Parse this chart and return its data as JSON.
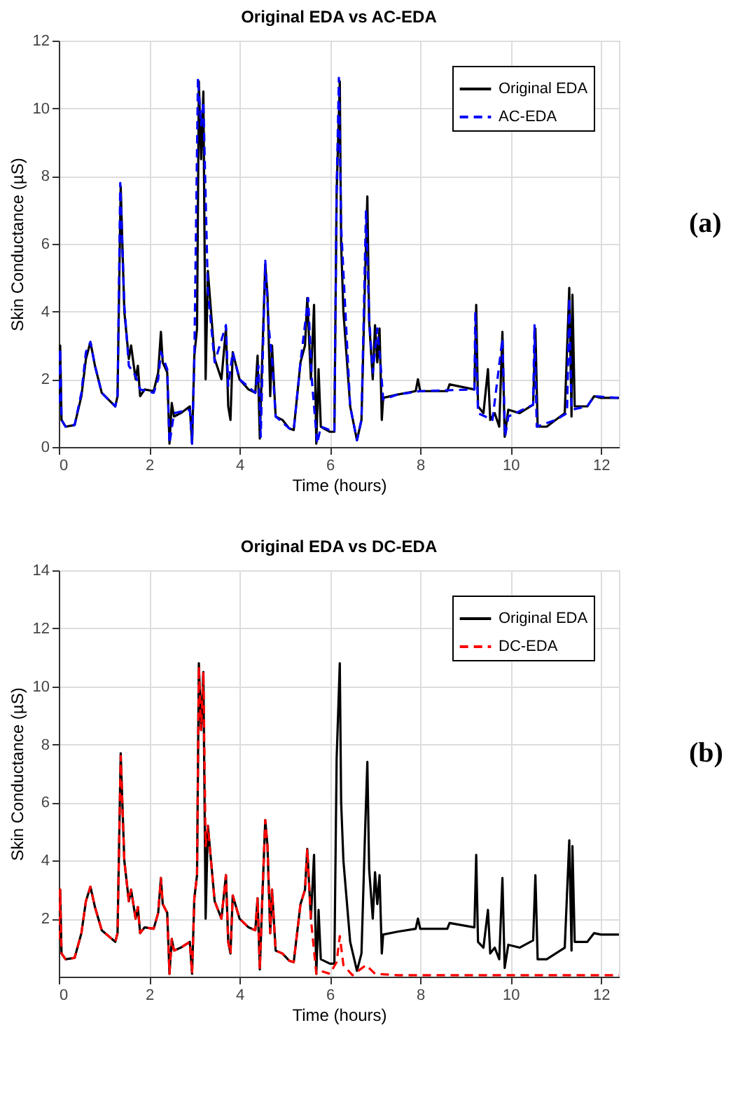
{
  "chart_data": [
    {
      "type": "line",
      "title": "Original EDA vs AC-EDA",
      "xlabel": "Time (hours)",
      "ylabel": "Skin Conductance (µS)",
      "xlim": [
        0,
        12.4
      ],
      "xticks": [
        0,
        2,
        4,
        6,
        8,
        10,
        12
      ],
      "ylim": [
        0,
        12
      ],
      "yticks": [
        0,
        2,
        4,
        6,
        8,
        10,
        12
      ],
      "grid": true,
      "legend": "top right",
      "annotations": [
        "(a)"
      ],
      "series": [
        {
          "name": "Original EDA",
          "color": "#000000",
          "line_style": "solid",
          "x": [
            0,
            0.03,
            0.06,
            0.15,
            0.35,
            0.5,
            0.6,
            0.7,
            0.8,
            0.95,
            1.1,
            1.25,
            1.3,
            1.37,
            1.45,
            1.55,
            1.6,
            1.7,
            1.75,
            1.8,
            1.9,
            2.1,
            2.2,
            2.26,
            2.3,
            2.4,
            2.45,
            2.5,
            2.55,
            2.7,
            2.9,
            2.95,
            3.0,
            3.06,
            3.1,
            3.15,
            3.2,
            3.25,
            3.3,
            3.45,
            3.6,
            3.7,
            3.75,
            3.8,
            3.85,
            4.0,
            4.2,
            4.35,
            4.4,
            4.45,
            4.5,
            4.57,
            4.62,
            4.68,
            4.72,
            4.8,
            4.95,
            5.1,
            5.2,
            5.35,
            5.45,
            5.5,
            5.58,
            5.65,
            5.7,
            5.75,
            5.8,
            6.0,
            6.1,
            6.15,
            6.22,
            6.25,
            6.3,
            6.45,
            6.6,
            6.7,
            6.78,
            6.83,
            6.87,
            6.95,
            7.0,
            7.05,
            7.1,
            7.15,
            7.18,
            7.5,
            7.9,
            7.95,
            8.0,
            8.6,
            8.65,
            9.2,
            9.24,
            9.28,
            9.4,
            9.5,
            9.55,
            9.65,
            9.75,
            9.82,
            9.87,
            9.95,
            10.2,
            10.5,
            10.55,
            10.6,
            10.8,
            11.0,
            11.2,
            11.3,
            11.35,
            11.37,
            11.42,
            11.7,
            11.85,
            12.0,
            12.4
          ],
          "values": [
            1.3,
            3.0,
            0.8,
            0.6,
            0.65,
            1.5,
            2.6,
            3.1,
            2.4,
            1.6,
            1.4,
            1.2,
            1.5,
            7.7,
            4.0,
            2.6,
            3.0,
            2.0,
            2.4,
            1.5,
            1.7,
            1.65,
            2.2,
            3.4,
            2.5,
            2.2,
            0.1,
            1.3,
            0.9,
            1.0,
            1.2,
            0.1,
            2.7,
            3.5,
            10.8,
            8.5,
            10.5,
            2.0,
            5.2,
            2.6,
            2.0,
            3.5,
            1.2,
            0.8,
            2.8,
            2.0,
            1.7,
            1.6,
            2.7,
            0.25,
            2.5,
            5.4,
            4.5,
            1.5,
            3.0,
            0.9,
            0.8,
            0.55,
            0.5,
            2.5,
            3.0,
            4.4,
            2.0,
            4.2,
            0.1,
            2.3,
            0.6,
            0.45,
            0.45,
            7.5,
            10.8,
            6.0,
            4.0,
            1.2,
            0.2,
            0.8,
            5.0,
            7.4,
            3.7,
            2.0,
            3.6,
            2.5,
            3.5,
            0.8,
            1.45,
            1.55,
            1.65,
            2.0,
            1.65,
            1.65,
            1.85,
            1.7,
            4.2,
            1.2,
            1.0,
            2.3,
            0.8,
            1.0,
            0.6,
            3.4,
            0.3,
            1.1,
            1.0,
            1.25,
            3.5,
            0.6,
            0.6,
            0.8,
            1.0,
            4.7,
            0.9,
            4.5,
            1.2,
            1.2,
            1.5,
            1.45,
            1.45
          ]
        },
        {
          "name": "AC-EDA",
          "color": "#0000ff",
          "line_style": "dashed",
          "x": [
            0,
            0.03,
            0.06,
            0.15,
            0.35,
            0.5,
            0.6,
            0.7,
            0.8,
            0.95,
            1.1,
            1.25,
            1.3,
            1.36,
            1.45,
            1.55,
            1.7,
            1.8,
            2.1,
            2.2,
            2.26,
            2.4,
            2.45,
            2.55,
            2.9,
            2.95,
            3.0,
            3.08,
            3.15,
            3.2,
            3.3,
            3.45,
            3.7,
            3.75,
            3.85,
            4.0,
            4.35,
            4.42,
            4.47,
            4.57,
            4.65,
            4.72,
            4.8,
            5.1,
            5.2,
            5.35,
            5.52,
            5.6,
            5.72,
            5.8,
            6.1,
            6.15,
            6.2,
            6.25,
            6.45,
            6.6,
            6.7,
            6.8,
            6.87,
            6.95,
            7.05,
            7.12,
            7.18,
            7.5,
            8.0,
            9.2,
            9.22,
            9.28,
            9.6,
            9.82,
            9.88,
            9.95,
            10.5,
            10.53,
            10.58,
            11.0,
            11.25,
            11.3,
            11.35,
            11.7,
            11.85,
            12.4
          ],
          "values": [
            1.3,
            2.9,
            0.8,
            0.6,
            0.65,
            1.6,
            2.8,
            3.1,
            2.4,
            1.6,
            1.4,
            1.2,
            1.5,
            7.8,
            4.2,
            2.4,
            2.1,
            1.7,
            1.6,
            2.0,
            2.8,
            2.3,
            0.1,
            1.0,
            1.1,
            0.1,
            2.6,
            10.9,
            9.5,
            10.2,
            4.6,
            2.5,
            3.6,
            1.8,
            2.8,
            2.0,
            1.6,
            2.4,
            0.3,
            5.5,
            3.5,
            2.6,
            0.9,
            0.55,
            0.5,
            2.5,
            4.4,
            2.0,
            0.1,
            0.6,
            0.45,
            7.6,
            10.9,
            6.5,
            1.2,
            0.2,
            0.8,
            7.0,
            3.8,
            2.2,
            3.5,
            2.5,
            1.4,
            1.55,
            1.65,
            1.7,
            4.0,
            1.0,
            0.8,
            3.2,
            0.3,
            0.9,
            1.25,
            3.6,
            0.6,
            0.8,
            1.0,
            4.4,
            1.1,
            1.2,
            1.5,
            1.45
          ]
        }
      ]
    },
    {
      "type": "line",
      "title": "Original EDA vs DC-EDA",
      "xlabel": "Time (hours)",
      "ylabel": "Skin Conductance (µS)",
      "xlim": [
        0,
        12.4
      ],
      "xticks": [
        0,
        2,
        4,
        6,
        8,
        10,
        12
      ],
      "ylim": [
        0,
        14
      ],
      "yticks": [
        2,
        4,
        6,
        8,
        10,
        12,
        14
      ],
      "grid": true,
      "legend": "top right",
      "annotations": [
        "(b)"
      ],
      "series": [
        {
          "name": "Original EDA",
          "color": "#000000",
          "line_style": "solid",
          "x": [
            0,
            0.03,
            0.06,
            0.15,
            0.35,
            0.5,
            0.6,
            0.7,
            0.8,
            0.95,
            1.1,
            1.25,
            1.3,
            1.37,
            1.45,
            1.55,
            1.6,
            1.7,
            1.75,
            1.8,
            1.9,
            2.1,
            2.2,
            2.26,
            2.3,
            2.4,
            2.45,
            2.5,
            2.55,
            2.7,
            2.9,
            2.95,
            3.0,
            3.06,
            3.1,
            3.15,
            3.2,
            3.25,
            3.3,
            3.45,
            3.6,
            3.7,
            3.75,
            3.8,
            3.85,
            4.0,
            4.2,
            4.35,
            4.4,
            4.45,
            4.5,
            4.57,
            4.62,
            4.68,
            4.72,
            4.8,
            4.95,
            5.1,
            5.2,
            5.35,
            5.45,
            5.5,
            5.58,
            5.65,
            5.7,
            5.75,
            5.8,
            6.0,
            6.1,
            6.15,
            6.22,
            6.25,
            6.3,
            6.45,
            6.6,
            6.7,
            6.78,
            6.83,
            6.87,
            6.95,
            7.0,
            7.05,
            7.1,
            7.15,
            7.18,
            7.5,
            7.9,
            7.95,
            8.0,
            8.6,
            8.65,
            9.2,
            9.24,
            9.28,
            9.4,
            9.5,
            9.55,
            9.65,
            9.75,
            9.82,
            9.87,
            9.95,
            10.2,
            10.5,
            10.55,
            10.6,
            10.8,
            11.0,
            11.2,
            11.3,
            11.35,
            11.37,
            11.42,
            11.7,
            11.85,
            12.0,
            12.4
          ],
          "values": [
            1.3,
            3.0,
            0.8,
            0.6,
            0.65,
            1.5,
            2.6,
            3.1,
            2.4,
            1.6,
            1.4,
            1.2,
            1.5,
            7.7,
            4.0,
            2.6,
            3.0,
            2.0,
            2.4,
            1.5,
            1.7,
            1.65,
            2.2,
            3.4,
            2.5,
            2.2,
            0.1,
            1.3,
            0.9,
            1.0,
            1.2,
            0.1,
            2.7,
            3.5,
            10.8,
            8.5,
            10.5,
            2.0,
            5.2,
            2.6,
            2.0,
            3.5,
            1.2,
            0.8,
            2.8,
            2.0,
            1.7,
            1.6,
            2.7,
            0.25,
            2.5,
            5.4,
            4.5,
            1.5,
            3.0,
            0.9,
            0.8,
            0.55,
            0.5,
            2.5,
            3.0,
            4.4,
            2.0,
            4.2,
            0.1,
            2.3,
            0.6,
            0.45,
            0.45,
            7.5,
            10.8,
            6.0,
            4.0,
            1.2,
            0.2,
            0.8,
            5.0,
            7.4,
            3.7,
            2.0,
            3.6,
            2.5,
            3.5,
            0.8,
            1.45,
            1.55,
            1.65,
            2.0,
            1.65,
            1.65,
            1.85,
            1.7,
            4.2,
            1.2,
            1.0,
            2.3,
            0.8,
            1.0,
            0.6,
            3.4,
            0.3,
            1.1,
            1.0,
            1.25,
            3.5,
            0.6,
            0.6,
            0.8,
            1.0,
            4.7,
            0.9,
            4.5,
            1.2,
            1.2,
            1.5,
            1.45,
            1.45
          ]
        },
        {
          "name": "DC-EDA",
          "color": "#ff0000",
          "line_style": "dashed",
          "x": [
            0,
            0.03,
            0.06,
            0.15,
            0.35,
            0.5,
            0.6,
            0.7,
            0.8,
            0.95,
            1.1,
            1.25,
            1.3,
            1.37,
            1.45,
            1.55,
            1.6,
            1.7,
            1.75,
            1.8,
            1.9,
            2.1,
            2.2,
            2.26,
            2.3,
            2.4,
            2.45,
            2.5,
            2.55,
            2.7,
            2.9,
            2.95,
            3.0,
            3.06,
            3.1,
            3.15,
            3.2,
            3.25,
            3.3,
            3.45,
            3.6,
            3.7,
            3.75,
            3.8,
            3.85,
            4.0,
            4.2,
            4.35,
            4.4,
            4.45,
            4.5,
            4.57,
            4.62,
            4.68,
            4.72,
            4.8,
            4.95,
            5.1,
            5.2,
            5.35,
            5.45,
            5.5,
            5.58,
            5.7,
            5.8,
            6.0,
            6.15,
            6.22,
            6.3,
            6.5,
            6.8,
            7.0,
            7.5,
            12.4
          ],
          "values": [
            1.3,
            3.0,
            0.8,
            0.6,
            0.65,
            1.5,
            2.6,
            3.1,
            2.4,
            1.6,
            1.4,
            1.2,
            1.5,
            7.6,
            4.0,
            2.6,
            3.0,
            2.0,
            2.4,
            1.5,
            1.7,
            1.65,
            2.2,
            3.4,
            2.5,
            2.2,
            0.1,
            1.3,
            0.9,
            1.0,
            1.2,
            0.1,
            2.7,
            3.5,
            10.7,
            8.5,
            10.5,
            4.5,
            5.2,
            2.6,
            2.0,
            3.5,
            1.2,
            0.8,
            2.8,
            2.0,
            1.7,
            1.6,
            2.7,
            0.25,
            2.5,
            5.4,
            4.5,
            1.5,
            3.0,
            0.9,
            0.8,
            0.55,
            0.5,
            2.5,
            3.0,
            4.4,
            2.0,
            0.1,
            0.2,
            0.1,
            0.5,
            1.4,
            0.4,
            0.05,
            0.4,
            0.1,
            0.05,
            0.05
          ]
        }
      ]
    }
  ]
}
